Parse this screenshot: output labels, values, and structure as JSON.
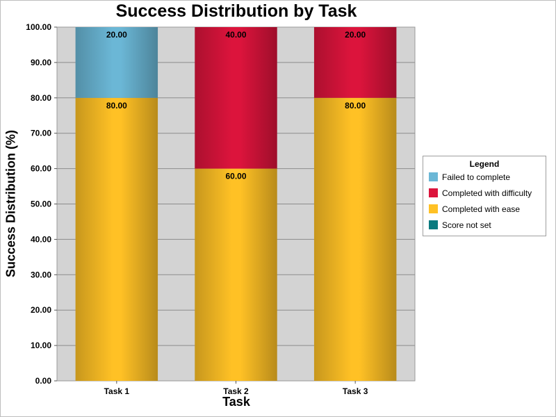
{
  "chart_data": {
    "type": "bar",
    "stacked": true,
    "title": "Success Distribution by Task",
    "xlabel": "Task",
    "ylabel": "Success Distribution (%)",
    "ylim": [
      0,
      100
    ],
    "yticks": [
      "0.00",
      "10.00",
      "20.00",
      "30.00",
      "40.00",
      "50.00",
      "60.00",
      "70.00",
      "80.00",
      "90.00",
      "100.00"
    ],
    "categories": [
      "Task 1",
      "Task 2",
      "Task 3"
    ],
    "series": [
      {
        "name": "Completed with ease",
        "values": [
          80,
          60,
          80
        ],
        "labels": [
          "80.00",
          "60.00",
          "80.00"
        ],
        "color": "#FFC125"
      },
      {
        "name": "Completed with difficulty",
        "values": [
          0,
          40,
          20
        ],
        "labels": [
          "",
          "40.00",
          "20.00"
        ],
        "color": "#DC143C"
      },
      {
        "name": "Failed to complete",
        "values": [
          20,
          0,
          0
        ],
        "labels": [
          "20.00",
          "",
          ""
        ],
        "color": "#6BB7D6"
      },
      {
        "name": "Score not set",
        "values": [
          0,
          0,
          0
        ],
        "labels": [
          "",
          "",
          ""
        ],
        "color": "#0A7A7F"
      }
    ],
    "grid": true,
    "plot_background": "#D3D3D3",
    "legend": {
      "title": "Legend",
      "position": "right",
      "items": [
        {
          "name": "Failed to complete",
          "color": "#6BB7D6"
        },
        {
          "name": "Completed with difficulty",
          "color": "#DC143C"
        },
        {
          "name": "Completed with ease",
          "color": "#FFC125"
        },
        {
          "name": "Score not set",
          "color": "#0A7A7F"
        }
      ]
    }
  }
}
